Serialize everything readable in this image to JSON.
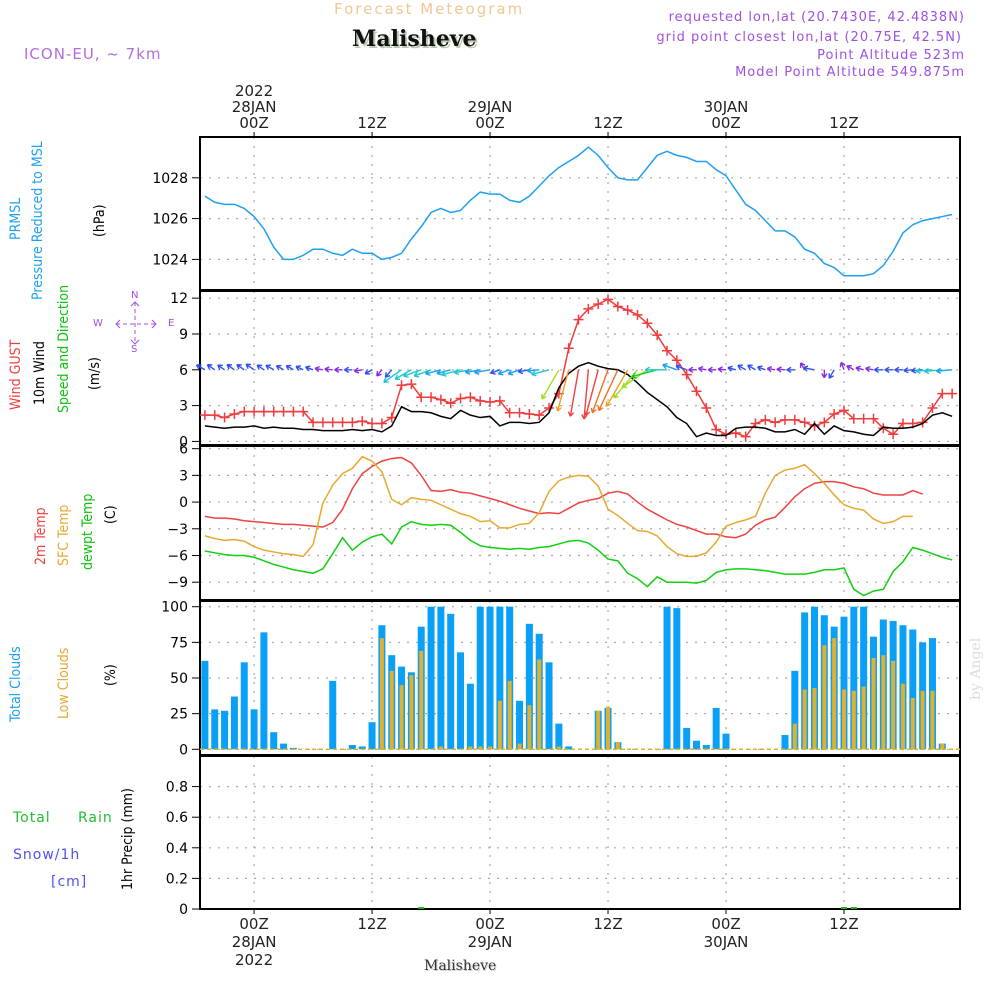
{
  "header": {
    "title": "Forecast Meteogram",
    "station": "Malisheve",
    "model": "ICON-EU, ~ 7km",
    "requested": "requested lon,lat (20.7430E, 42.4838N)",
    "grid_point": "grid point closest lon,lat (20.75E, 42.5N)",
    "point_altitude": "Point Altitude 523m",
    "model_altitude": "Model Point Altitude 549.875m",
    "footer_station": "Malisheve",
    "credit": "by Angel"
  },
  "time_axis": {
    "ticks": [
      {
        "hour": 0,
        "top": [
          "2022",
          "28JAN",
          "00Z"
        ],
        "bottom": [
          "00Z",
          "28JAN",
          "2022"
        ]
      },
      {
        "hour": 12,
        "top": [
          "12Z"
        ],
        "bottom": [
          "12Z"
        ]
      },
      {
        "hour": 24,
        "top": [
          "29JAN",
          "00Z"
        ],
        "bottom": [
          "00Z",
          "29JAN"
        ]
      },
      {
        "hour": 36,
        "top": [
          "12Z"
        ],
        "bottom": [
          "12Z"
        ]
      },
      {
        "hour": 48,
        "top": [
          "30JAN",
          "00Z"
        ],
        "bottom": [
          "00Z",
          "30JAN"
        ]
      },
      {
        "hour": 60,
        "top": [
          "12Z"
        ],
        "bottom": [
          "12Z"
        ]
      }
    ],
    "range_hours": [
      -5.5,
      71.8
    ]
  },
  "legend_labels": {
    "pressure": [
      "PRMSL",
      "Pressure Reduced to MSL",
      "(hPa)"
    ],
    "wind": [
      "Wind GUST",
      "10m Wind",
      "Speed and Direction",
      "(m/s)"
    ],
    "compass": {
      "n": "N",
      "s": "S",
      "w": "W",
      "e": "E"
    },
    "temp": [
      "2m Temp",
      "SFC Temp",
      "dewpt Temp",
      "(C)"
    ],
    "clouds": [
      "Total Clouds",
      "Low Clouds",
      "(%)"
    ],
    "precip": [
      "Total",
      "Rain",
      "Snow/1h",
      "[cm]",
      "1hr Precip (mm)"
    ]
  },
  "colors": {
    "pressure": "#1ea0f0",
    "gust": "#f03c3c",
    "wind10m": "#000000",
    "t2m": "#f04040",
    "tsfc": "#e8a830",
    "dewpt": "#10d010",
    "total_clouds": "#0aa0f5",
    "low_clouds": "#e0b030",
    "rain": "#20b020",
    "snow": "#4040f0",
    "label_purple": "#a050e0"
  },
  "chart_data": [
    {
      "type": "line",
      "title": "PRMSL Pressure Reduced to MSL",
      "ylabel": "(hPa)",
      "ylim": [
        1022.5,
        1030.0
      ],
      "yticks": [
        1024,
        1026,
        1028
      ],
      "grid": true,
      "x_start_hour": -5,
      "x_step_hours": 1,
      "series": [
        {
          "name": "PRMSL",
          "values": [
            1027.1,
            1026.8,
            1026.7,
            1026.7,
            1026.5,
            1026.1,
            1025.5,
            1024.6,
            1024.0,
            1024.0,
            1024.2,
            1024.5,
            1024.5,
            1024.3,
            1024.2,
            1024.5,
            1024.3,
            1024.3,
            1024.0,
            1024.1,
            1024.3,
            1025.0,
            1025.6,
            1026.3,
            1026.5,
            1026.3,
            1026.4,
            1026.9,
            1027.3,
            1027.2,
            1027.2,
            1026.9,
            1026.8,
            1027.1,
            1027.6,
            1028.1,
            1028.5,
            1028.8,
            1029.1,
            1029.5,
            1029.1,
            1028.5,
            1028.0,
            1027.9,
            1027.9,
            1028.5,
            1029.1,
            1029.3,
            1029.1,
            1029.0,
            1028.8,
            1028.8,
            1028.4,
            1028.1,
            1027.4,
            1026.7,
            1026.4,
            1025.9,
            1025.4,
            1025.4,
            1025.1,
            1024.5,
            1024.3,
            1023.8,
            1023.6,
            1023.2,
            1023.2,
            1023.2,
            1023.3,
            1023.7,
            1024.4,
            1025.3,
            1025.7,
            1025.9,
            1026.0,
            1026.1,
            1026.2
          ]
        }
      ]
    },
    {
      "type": "line",
      "title": "Wind GUST / 10m Wind Speed and Direction",
      "ylabel": "(m/s)",
      "ylim": [
        -0.3,
        12.6
      ],
      "yticks": [
        0,
        3,
        6,
        9,
        12
      ],
      "grid": true,
      "x_start_hour": -5,
      "x_step_hours": 1,
      "series": [
        {
          "name": "Wind GUST",
          "marker": "+",
          "values": [
            2.2,
            2.2,
            2.0,
            2.3,
            2.5,
            2.5,
            2.5,
            2.5,
            2.5,
            2.5,
            2.5,
            1.6,
            1.6,
            1.6,
            1.6,
            1.6,
            1.7,
            1.5,
            1.5,
            2.0,
            4.7,
            4.8,
            3.7,
            3.7,
            3.5,
            3.2,
            3.6,
            3.7,
            3.4,
            3.3,
            3.4,
            2.4,
            2.4,
            2.3,
            2.2,
            2.8,
            4.0,
            7.8,
            10.2,
            11.1,
            11.5,
            11.9,
            11.3,
            11.0,
            10.6,
            9.9,
            8.9,
            7.6,
            6.8,
            5.6,
            4.2,
            2.8,
            1.0,
            0.6,
            0.7,
            0.4,
            1.5,
            1.8,
            1.6,
            1.8,
            1.8,
            1.6,
            1.3,
            1.6,
            2.3,
            2.6,
            1.9,
            1.9,
            1.9,
            1.1,
            0.6,
            1.5,
            1.5,
            1.6,
            2.8,
            4.0,
            4.0
          ]
        },
        {
          "name": "10m Wind",
          "values": [
            1.3,
            1.2,
            1.1,
            1.2,
            1.2,
            1.3,
            1.1,
            1.2,
            1.1,
            1.1,
            1.0,
            1.0,
            0.9,
            0.9,
            0.9,
            1.0,
            0.9,
            1.0,
            0.8,
            1.3,
            2.9,
            2.5,
            2.5,
            2.4,
            2.1,
            1.9,
            2.6,
            2.2,
            2.0,
            2.1,
            1.3,
            1.6,
            1.6,
            1.5,
            1.6,
            2.4,
            4.5,
            5.7,
            6.3,
            6.6,
            6.3,
            6.1,
            6.0,
            5.6,
            4.9,
            4.1,
            3.5,
            2.9,
            2.0,
            1.5,
            0.4,
            0.7,
            0.5,
            0.5,
            1.1,
            1.2,
            1.2,
            1.1,
            0.8,
            0.8,
            1.0,
            0.6,
            1.5,
            0.6,
            1.3,
            0.9,
            0.8,
            0.6,
            0.5,
            1.2,
            1.1,
            1.1,
            1.2,
            1.5,
            2.2,
            2.4,
            2.1
          ]
        },
        {
          "name": "Direction (deg from)",
          "values": [
            120,
            125,
            125,
            125,
            125,
            125,
            125,
            120,
            120,
            120,
            115,
            110,
            100,
            95,
            90,
            90,
            80,
            60,
            40,
            40,
            55,
            60,
            70,
            70,
            75,
            75,
            75,
            80,
            80,
            80,
            70,
            70,
            70,
            80,
            85,
            75,
            30,
            15,
            10,
            5,
            15,
            20,
            25,
            30,
            40,
            55,
            75,
            90,
            110,
            110,
            90,
            100,
            90,
            95,
            105,
            120,
            120,
            110,
            100,
            95,
            90,
            150,
            100,
            0,
            30,
            160,
            120,
            105,
            100,
            90,
            90,
            90,
            85,
            85,
            85,
            85,
            85
          ]
        }
      ]
    },
    {
      "type": "line",
      "title": "2m Temp / SFC Temp / dewpt Temp",
      "ylabel": "(C)",
      "ylim": [
        -11.0,
        6.3
      ],
      "yticks": [
        -9,
        -6,
        -3,
        0,
        3,
        6
      ],
      "grid": true,
      "x_start_hour": -5,
      "x_step_hours": 1,
      "series": [
        {
          "name": "2m Temp",
          "values": [
            -1.6,
            -1.8,
            -1.8,
            -1.9,
            -2.1,
            -2.2,
            -2.3,
            -2.4,
            -2.5,
            -2.5,
            -2.6,
            -2.7,
            -2.8,
            -2.3,
            -0.8,
            1.5,
            3.2,
            4.0,
            4.6,
            4.9,
            5.0,
            4.4,
            3.0,
            1.3,
            1.2,
            1.4,
            1.1,
            1.0,
            0.7,
            0.4,
            0.1,
            -0.3,
            -0.7,
            -1.0,
            -1.3,
            -1.2,
            -1.3,
            -0.7,
            -0.1,
            0.2,
            0.4,
            1.0,
            1.2,
            0.9,
            0.0,
            -0.8,
            -1.4,
            -2.0,
            -2.5,
            -2.8,
            -3.2,
            -3.6,
            -3.6,
            -3.9,
            -4.0,
            -3.6,
            -2.6,
            -2.0,
            -1.7,
            -0.6,
            0.6,
            1.5,
            2.1,
            2.3,
            2.3,
            2.1,
            1.7,
            1.5,
            1.0,
            0.8,
            0.8,
            0.8,
            1.3,
            0.9
          ]
        },
        {
          "name": "SFC Temp",
          "values": [
            -3.8,
            -4.1,
            -4.3,
            -4.2,
            -4.4,
            -5.0,
            -5.4,
            -5.6,
            -5.8,
            -5.9,
            -6.1,
            -4.8,
            -0.1,
            1.9,
            3.2,
            3.8,
            5.1,
            4.6,
            3.4,
            0.3,
            -0.3,
            0.5,
            0.3,
            0.2,
            -0.3,
            -0.8,
            -1.3,
            -1.6,
            -2.2,
            -2.1,
            -2.9,
            -2.9,
            -2.5,
            -2.4,
            -1.2,
            1.2,
            2.4,
            2.8,
            3.0,
            2.9,
            1.8,
            -0.8,
            -1.5,
            -2.4,
            -3.2,
            -3.3,
            -3.8,
            -5.0,
            -5.8,
            -6.1,
            -6.1,
            -5.7,
            -4.5,
            -2.7,
            -2.3,
            -2.0,
            -1.6,
            1.0,
            3.0,
            3.6,
            3.8,
            4.2,
            3.2,
            2.1,
            0.8,
            -0.3,
            -0.7,
            -0.9,
            -1.9,
            -2.4,
            -2.2,
            -1.6,
            -1.6
          ]
        },
        {
          "name": "dewpt Temp",
          "values": [
            -5.5,
            -5.7,
            -5.9,
            -6.0,
            -6.0,
            -6.2,
            -6.6,
            -7.0,
            -7.3,
            -7.6,
            -7.8,
            -8.0,
            -7.5,
            -5.8,
            -4.0,
            -5.4,
            -4.5,
            -3.9,
            -3.6,
            -4.7,
            -2.8,
            -2.2,
            -2.5,
            -2.6,
            -2.5,
            -2.6,
            -3.4,
            -4.3,
            -4.9,
            -5.1,
            -5.2,
            -5.3,
            -5.2,
            -5.3,
            -5.1,
            -5.0,
            -4.7,
            -4.4,
            -4.3,
            -4.6,
            -5.4,
            -6.4,
            -6.6,
            -8.0,
            -8.6,
            -9.5,
            -8.4,
            -9.0,
            -9.0,
            -9.0,
            -9.1,
            -8.8,
            -7.9,
            -7.6,
            -7.5,
            -7.5,
            -7.6,
            -7.7,
            -7.9,
            -8.1,
            -8.1,
            -8.1,
            -7.9,
            -7.6,
            -7.6,
            -7.4,
            -9.8,
            -10.5,
            -10.0,
            -9.8,
            -7.8,
            -6.7,
            -5.1,
            -5.4,
            -5.8,
            -6.2,
            -6.5,
            -6.5,
            -5.8,
            -6.0,
            -6.0
          ]
        }
      ]
    },
    {
      "type": "bar",
      "title": "Total Clouds / Low Clouds",
      "ylabel": "(%)",
      "ylim": [
        -4,
        104
      ],
      "yticks": [
        0,
        25,
        50,
        75,
        100
      ],
      "grid": true,
      "x_start_hour": -5,
      "x_step_hours": 1,
      "series": [
        {
          "name": "Total Clouds",
          "values": [
            62,
            28,
            27,
            37,
            61,
            28,
            82,
            12,
            4,
            1,
            0,
            0,
            0,
            48,
            0,
            3,
            2,
            19,
            87,
            66,
            58,
            54,
            86,
            100,
            100,
            95,
            68,
            46,
            100,
            100,
            100,
            100,
            34,
            88,
            81,
            61,
            18,
            2,
            0,
            0,
            27,
            29,
            5,
            0,
            0,
            0,
            0,
            100,
            99,
            15,
            6,
            3,
            29,
            11,
            0,
            0,
            0,
            0,
            0,
            10,
            55,
            96,
            100,
            94,
            86,
            93,
            100,
            100,
            79,
            91,
            90,
            87,
            84,
            75,
            78,
            4,
            0,
            0,
            0,
            0,
            0
          ]
        },
        {
          "name": "Low Clouds",
          "values": [
            0,
            0,
            0,
            0,
            0,
            0,
            0,
            0,
            0,
            0,
            0,
            0,
            0,
            0,
            0,
            0,
            0,
            0,
            78,
            55,
            45,
            52,
            69,
            0,
            2,
            0,
            0,
            2,
            2,
            2,
            34,
            48,
            4,
            31,
            63,
            0,
            2,
            0,
            0,
            0,
            27,
            30,
            5,
            0,
            0,
            0,
            0,
            0,
            0,
            0,
            0,
            0,
            0,
            0,
            0,
            0,
            0,
            0,
            0,
            0,
            18,
            42,
            43,
            73,
            78,
            42,
            41,
            44,
            64,
            66,
            62,
            46,
            36,
            41,
            41,
            4,
            0,
            0,
            0,
            0,
            0
          ]
        }
      ]
    },
    {
      "type": "bar",
      "title": "1hr Precip",
      "ylabel": "1hr Precip (mm)",
      "ylim": [
        0,
        1.0
      ],
      "yticks": [
        0,
        0.2,
        0.4,
        0.6,
        0.8
      ],
      "yticklabels": [
        "0",
        "0.2",
        "0.4",
        "0.6",
        "0.8"
      ],
      "grid": true,
      "series": [
        {
          "name": "Total Rain",
          "points": [
            {
              "hour": 17,
              "value": 0.01
            },
            {
              "hour": 60,
              "value": 0.01
            },
            {
              "hour": 61,
              "value": 0.01
            }
          ]
        },
        {
          "name": "Snow/1h",
          "points": []
        }
      ]
    }
  ]
}
